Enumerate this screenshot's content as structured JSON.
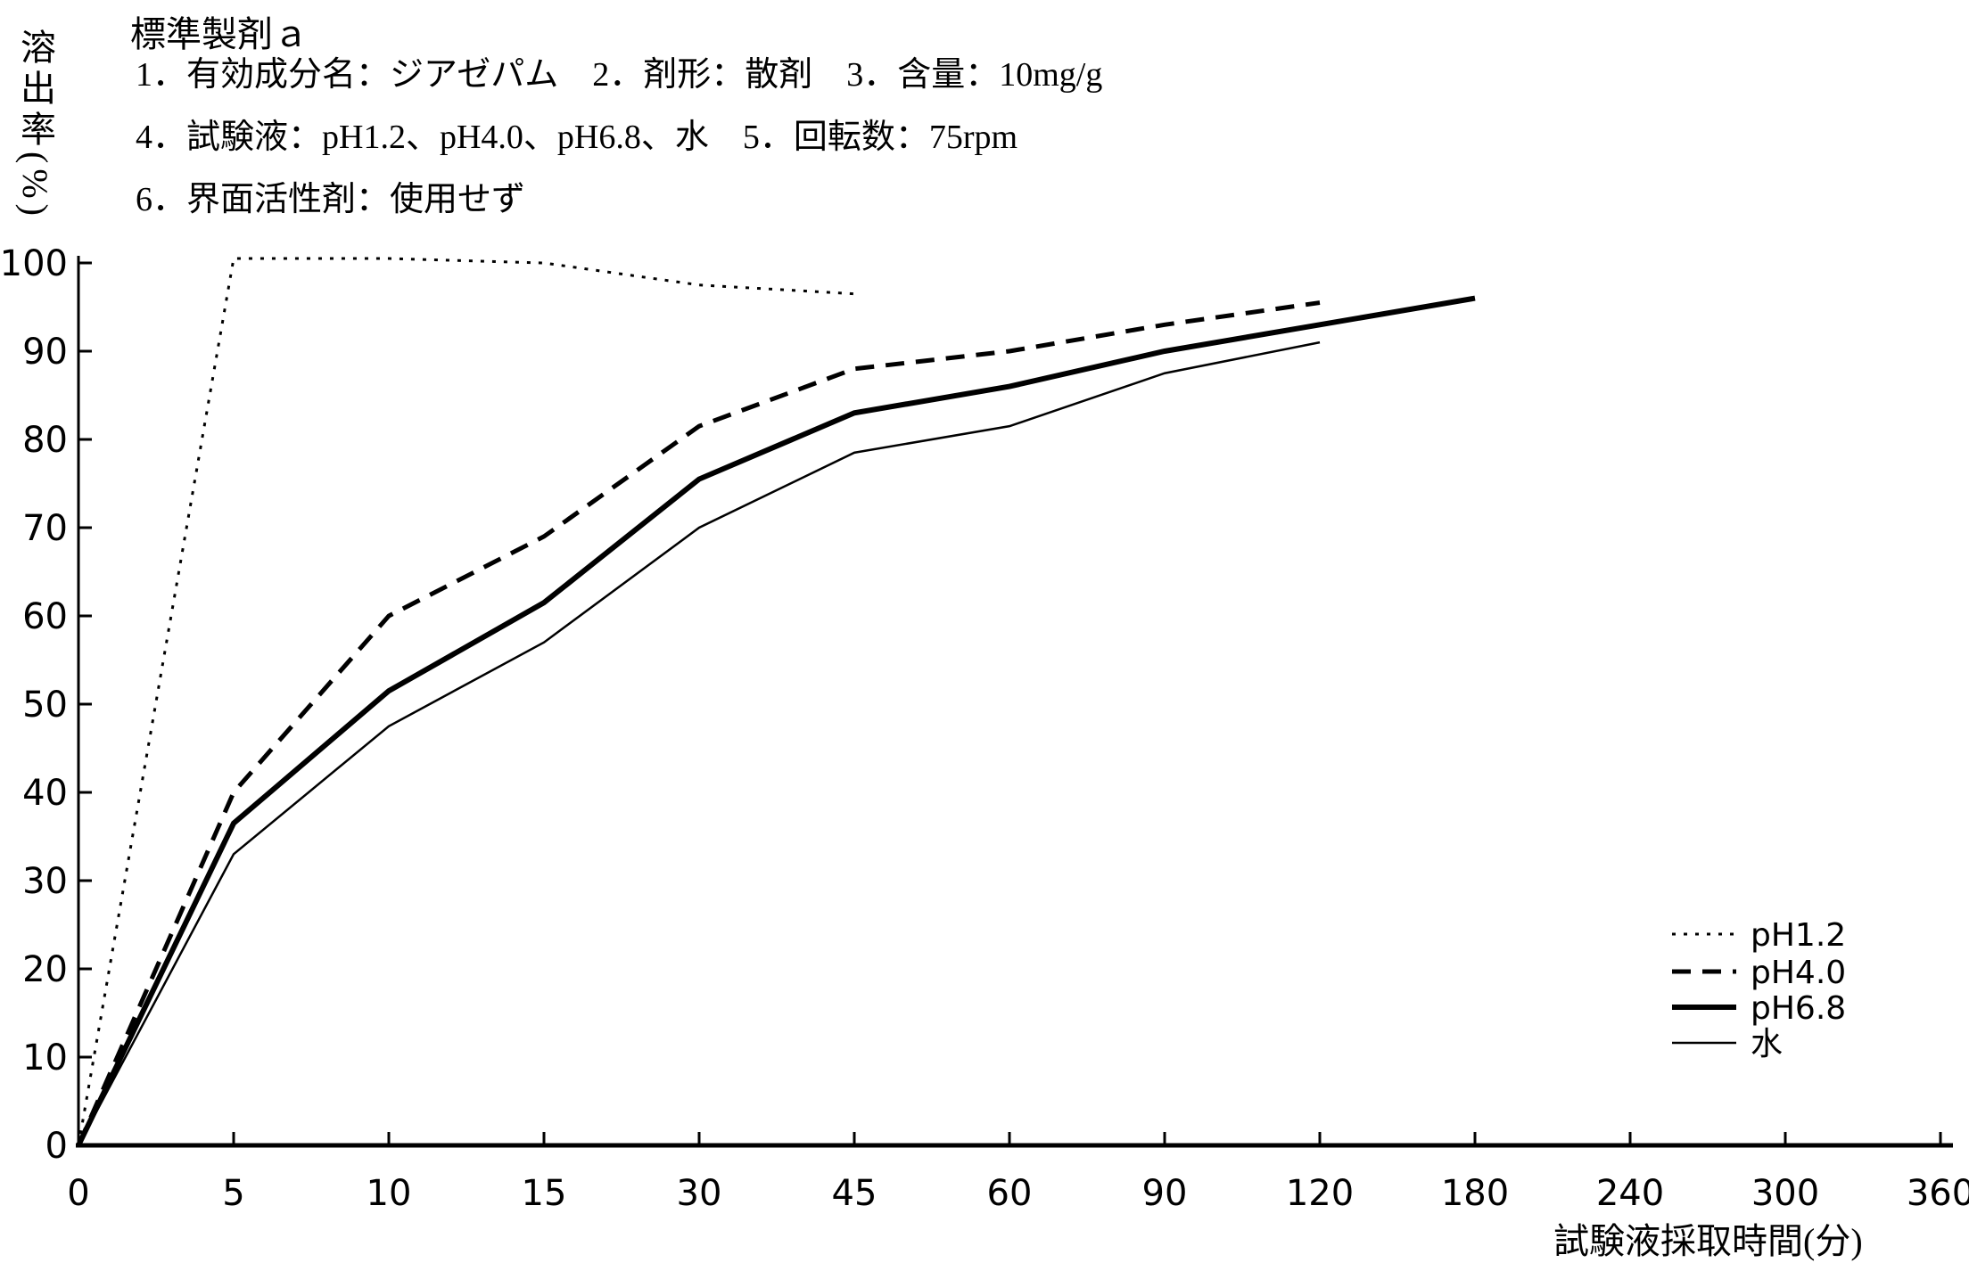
{
  "header": {
    "line1": "1．有効成分名：ジアゼパム　2．剤形：散剤　3．含量：10mg/g",
    "line2": "4．試験液：pH1.2、pH4.0、pH6.8、水　5．回転数：75rpm",
    "line3": "6．界面活性剤：使用せず"
  },
  "chart_data": {
    "type": "line",
    "title": "標準製剤ａ",
    "xlabel": "試験液採取時間(分)",
    "ylabel": "溶出率(%)",
    "x_ticks": [
      0,
      5,
      10,
      15,
      30,
      45,
      60,
      90,
      120,
      180,
      240,
      300,
      360
    ],
    "x_axis_spacing": "categorical-equal",
    "y_ticks": [
      0,
      10,
      20,
      30,
      40,
      50,
      60,
      70,
      80,
      90,
      100
    ],
    "ylim": [
      0,
      100
    ],
    "grid": false,
    "legend_position": "lower-right-inside",
    "series": [
      {
        "name": "pH1.2",
        "line": "dotted",
        "x": [
          0,
          5,
          10,
          15,
          30,
          45
        ],
        "values": [
          0,
          100.5,
          100.5,
          100,
          97.5,
          96.5
        ]
      },
      {
        "name": "pH4.0",
        "line": "dashed",
        "x": [
          0,
          5,
          10,
          15,
          30,
          45,
          60,
          90,
          120
        ],
        "values": [
          0,
          40,
          60,
          69,
          81.5,
          88,
          90,
          93,
          95.5
        ]
      },
      {
        "name": "pH6.8",
        "line": "solid-thick",
        "x": [
          0,
          5,
          10,
          15,
          30,
          45,
          60,
          90,
          120,
          180
        ],
        "values": [
          0,
          36.5,
          51.5,
          61.5,
          75.5,
          83,
          86,
          90,
          93,
          96
        ]
      },
      {
        "name": "水",
        "line": "solid-thin",
        "x": [
          0,
          5,
          10,
          15,
          30,
          45,
          60,
          90,
          120
        ],
        "values": [
          0,
          33,
          47.5,
          57,
          70,
          78.5,
          81.5,
          87.5,
          91
        ]
      }
    ]
  }
}
